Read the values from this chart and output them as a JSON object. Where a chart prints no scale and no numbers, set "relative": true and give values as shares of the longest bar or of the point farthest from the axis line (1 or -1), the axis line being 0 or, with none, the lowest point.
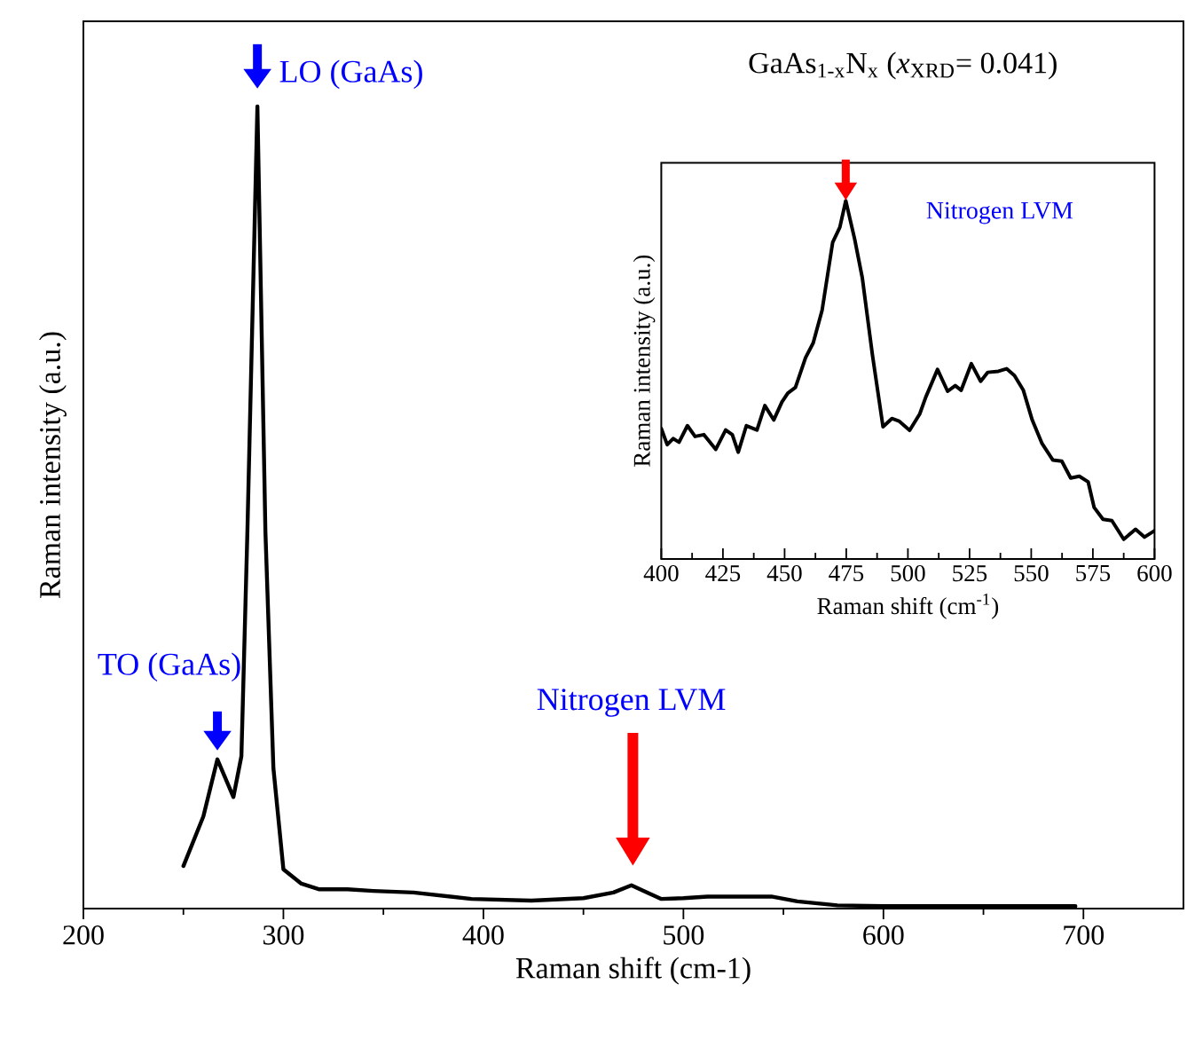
{
  "chart_data": [
    {
      "type": "line",
      "title": "GaAs$_{1-x}$N$_{x}$ (*x*$_{XRD}$= 0.041)",
      "xlabel": "Raman shift (cm-1)",
      "ylabel": "Raman intensity (a.u.)",
      "relative": true,
      "xlim": [
        200,
        750
      ],
      "xticks": [
        200,
        300,
        400,
        500,
        600,
        700
      ],
      "x": [
        250,
        260,
        267,
        275,
        279,
        282,
        287,
        291,
        295,
        300,
        309,
        318,
        332,
        345,
        365,
        394,
        424,
        450,
        465,
        474,
        480,
        489,
        500,
        512,
        544,
        557,
        577,
        600,
        627,
        696
      ],
      "series": [
        {
          "color": "#000000",
          "values": [
            0.053,
            0.115,
            0.186,
            0.139,
            0.19,
            0.47,
            1.0,
            0.47,
            0.175,
            0.049,
            0.031,
            0.024,
            0.024,
            0.022,
            0.02,
            0.012,
            0.01,
            0.013,
            0.02,
            0.029,
            0.022,
            0.012,
            0.013,
            0.015,
            0.015,
            0.009,
            0.004,
            0.003,
            0.003,
            0.003
          ]
        }
      ],
      "annotations": [
        {
          "text": "TO (GaAs)",
          "x": 267,
          "y": 0.186
        },
        {
          "text": "LO (GaAs)",
          "x": 287,
          "y": 1.0
        },
        "Nitrogen LVM"
      ]
    },
    {
      "type": "line",
      "xlabel": "Raman shift (cm$^{-1}$)",
      "ylabel": "Raman intensity (a.u.)",
      "relative": true,
      "xlim": [
        400,
        600
      ],
      "xticks": [
        400,
        425,
        450,
        475,
        500,
        525,
        550,
        575,
        600
      ],
      "x": [
        400,
        402.4,
        404.8,
        407.2,
        410.6,
        413.7,
        417.3,
        422.1,
        426.1,
        428.8,
        431.2,
        434.5,
        438.8,
        442,
        445.6,
        448.9,
        451.3,
        454.4,
        458.5,
        461.6,
        465.2,
        469.5,
        472.4,
        474.8,
        478.4,
        481.5,
        485.6,
        489.9,
        493.5,
        496.4,
        500.7,
        504.8,
        507.2,
        512,
        516.1,
        519.2,
        521.6,
        525.7,
        529.5,
        532.4,
        536.7,
        540,
        543.2,
        546.8,
        550.4,
        554.4,
        558.8,
        562.4,
        566,
        569.5,
        573.1,
        575.5,
        579.1,
        582.7,
        587.5,
        592.3,
        595.9,
        600
      ],
      "series": [
        {
          "color": "#000000",
          "values": [
            0.364,
            0.319,
            0.336,
            0.326,
            0.372,
            0.342,
            0.347,
            0.306,
            0.36,
            0.347,
            0.298,
            0.372,
            0.36,
            0.428,
            0.388,
            0.438,
            0.463,
            0.479,
            0.562,
            0.603,
            0.694,
            0.884,
            0.926,
            1.0,
            0.893,
            0.785,
            0.57,
            0.369,
            0.392,
            0.385,
            0.359,
            0.405,
            0.451,
            0.529,
            0.468,
            0.484,
            0.471,
            0.545,
            0.496,
            0.521,
            0.524,
            0.531,
            0.512,
            0.471,
            0.388,
            0.322,
            0.276,
            0.273,
            0.226,
            0.231,
            0.215,
            0.144,
            0.111,
            0.107,
            0.055,
            0.083,
            0.061,
            0.079
          ]
        }
      ],
      "annotations": [
        "Nitrogen LVM"
      ]
    }
  ]
}
